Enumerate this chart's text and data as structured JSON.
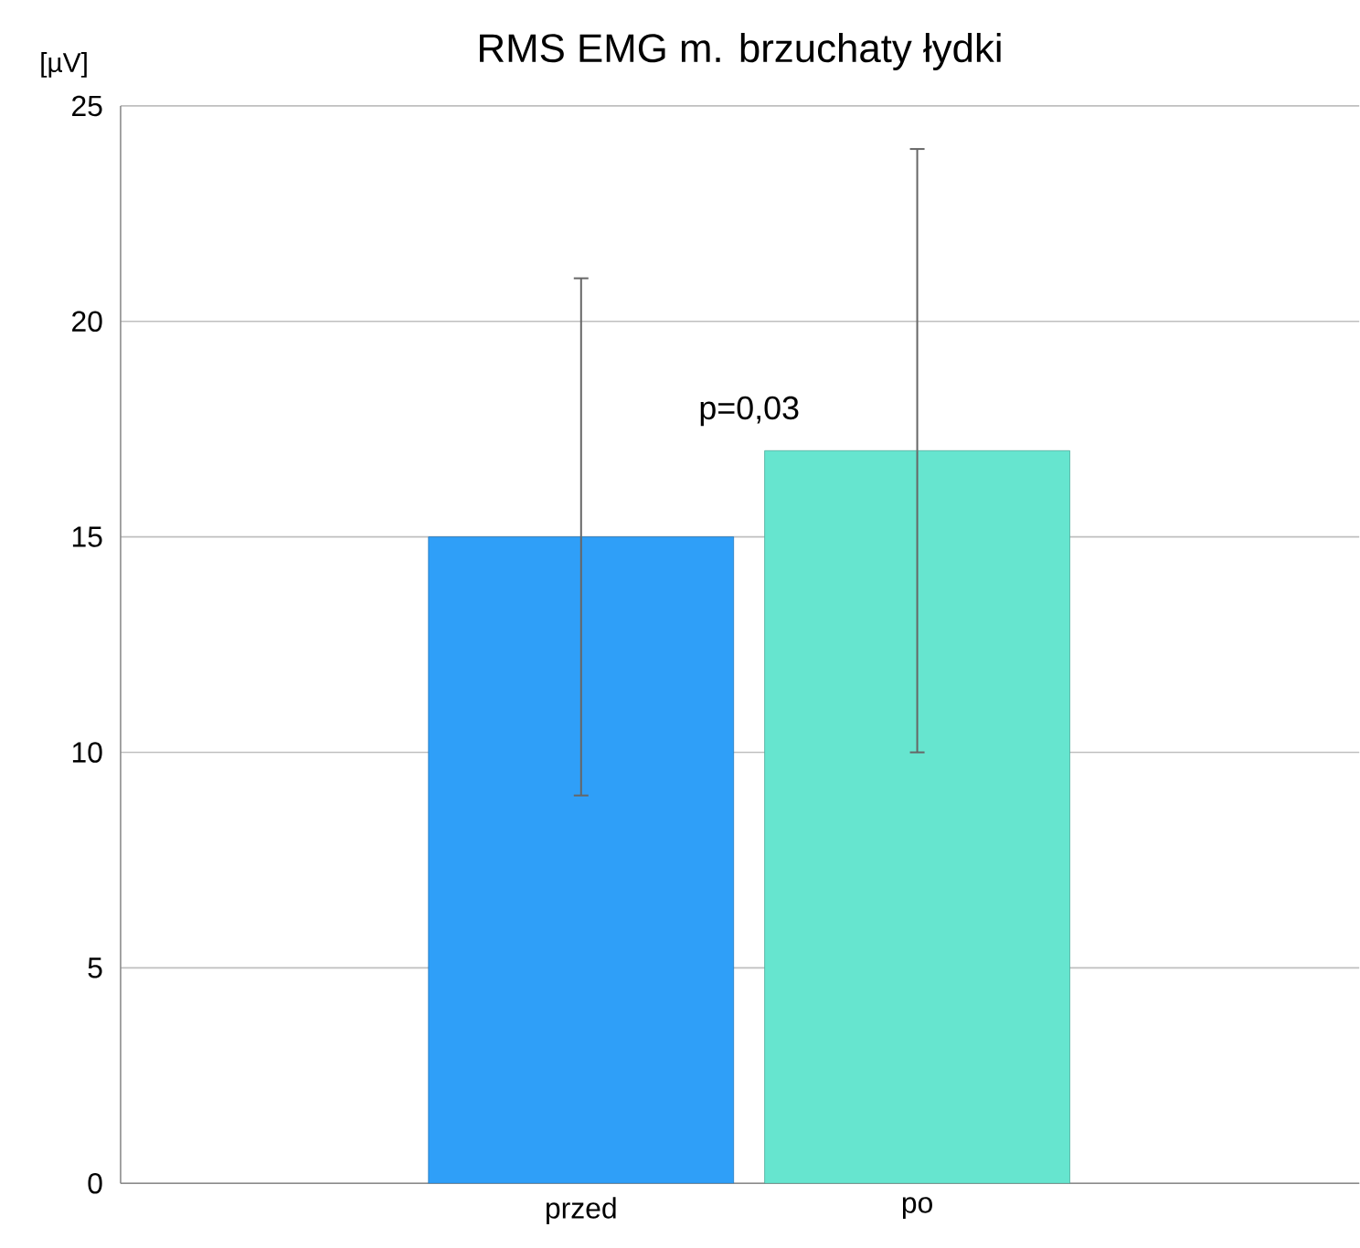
{
  "chart_data": {
    "type": "bar",
    "title": "RMS EMG m. brzuchaty łydki",
    "ylabel": "[µV]",
    "categories": [
      "przed",
      "po"
    ],
    "values": [
      15,
      17
    ],
    "colors": [
      "#2f9ff8",
      "#66e5cf"
    ],
    "errors": [
      6,
      7
    ],
    "ylim": [
      0,
      25
    ],
    "yticks": [
      0,
      5,
      10,
      15,
      20,
      25
    ],
    "grid": "y",
    "annotations": [
      "p=0,03"
    ]
  }
}
